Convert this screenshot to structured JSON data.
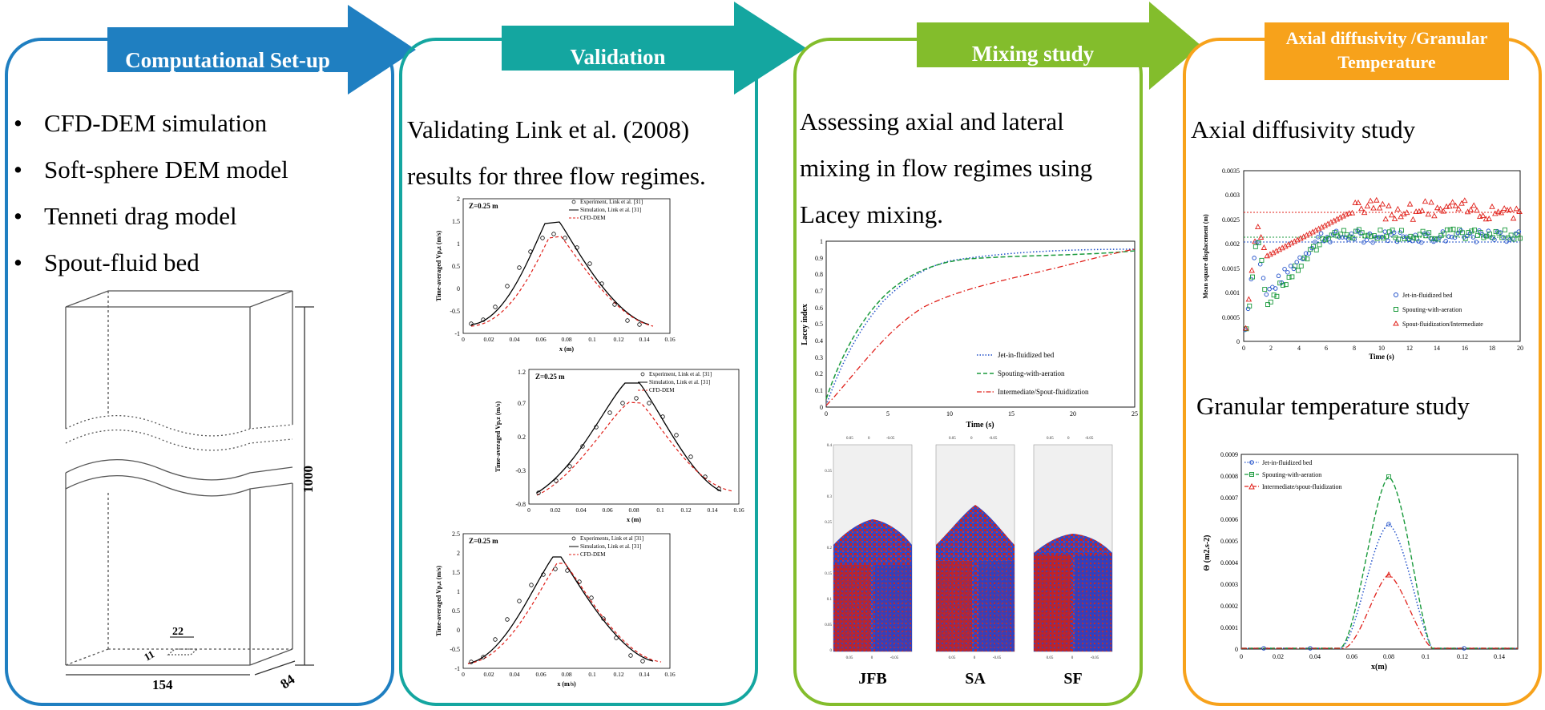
{
  "colors": {
    "p1": "#1f7fc1",
    "p2": "#14a6a0",
    "p3": "#83bd2c",
    "p4": "#f7a21b"
  },
  "panel1": {
    "banner": "Computational Set-up",
    "bullets": [
      "CFD-DEM simulation",
      "Soft-sphere DEM model",
      "Tenneti drag model",
      "Spout-fluid bed"
    ],
    "dims": {
      "height": "1000",
      "width": "154",
      "depth": "84",
      "inlet_w": "22",
      "inlet_d": "11"
    }
  },
  "panel2": {
    "banner": "Validation",
    "text_l1": "Validating Link et al. (2008)",
    "text_l2": "results for three flow regimes.",
    "plots": [
      {
        "z": "Z=0.25 m",
        "ylabel": "Time-averaged Vp,z (m/s)",
        "xlabel": "x (m)",
        "legend": [
          "Experiment, Link et al. [31]",
          "Simulation, Link et al. [31]",
          "CFD-DEM"
        ],
        "yticks": [
          "-1",
          "-0.5",
          "0",
          "0.5",
          "1",
          "1.5",
          "2"
        ],
        "xticks": [
          "0",
          "0.02",
          "0.04",
          "0.06",
          "0.08",
          "0.1",
          "0.12",
          "0.14",
          "0.16"
        ]
      },
      {
        "z": "Z=0.25 m",
        "ylabel": "Time-averaged Vp,z (m/s)",
        "xlabel": "x (m)",
        "legend": [
          "Experiment, Link et al. [31]",
          "Simulation, Link et al. [31]",
          "CFD-DEM"
        ],
        "yticks": [
          "-0.8",
          "-0.3",
          "0.2",
          "0.7",
          "1.2"
        ],
        "xticks": [
          "0",
          "0.02",
          "0.04",
          "0.06",
          "0.08",
          "0.1",
          "0.12",
          "0.14",
          "0.16"
        ]
      },
      {
        "z": "Z=0.25 m",
        "ylabel": "Time-averaged Vp,z (m/s)",
        "xlabel": "x (m/s)",
        "legend": [
          "Experiments, Link et al [31]",
          "Simulation, Link et al. [31]",
          "CFD-DEM"
        ],
        "yticks": [
          "-1",
          "-0.5",
          "0",
          "0.5",
          "1",
          "1.5",
          "2",
          "2.5"
        ],
        "xticks": [
          "0",
          "0.02",
          "0.04",
          "0.06",
          "0.08",
          "0.1",
          "0.12",
          "0.14",
          "0.16"
        ]
      }
    ]
  },
  "panel3": {
    "banner": "Mixing study",
    "text_l1": "Assessing axial and lateral",
    "text_l2": "mixing in flow regimes using",
    "text_l3": "Lacey mixing.",
    "lacey": {
      "ylabel": "Lacey index",
      "xlabel": "Time (s)",
      "yticks": [
        "0",
        "0.1",
        "0.2",
        "0.3",
        "0.4",
        "0.5",
        "0.6",
        "0.7",
        "0.8",
        "0.9",
        "1"
      ],
      "xticks": [
        "0",
        "5",
        "10",
        "15",
        "20",
        "25"
      ],
      "legend": [
        "Jet-in-fluidized bed",
        "Spouting-with-aeration",
        "Intermediate/Spout-fluidization"
      ]
    },
    "snap_labels": [
      "JFB",
      "SA",
      "SF"
    ],
    "snap_top": [
      "0.05",
      "0",
      "-0.05"
    ],
    "snap_y": [
      "0",
      "0.05",
      "0.1",
      "0.15",
      "0.2",
      "0.25",
      "0.3",
      "0.35",
      "0.4"
    ]
  },
  "panel4": {
    "banner_l1": "Axial diffusivity /Granular",
    "banner_l2": "Temperature",
    "title1": "Axial diffusivity study",
    "title2": "Granular temperature study",
    "msd": {
      "ylabel": "Mean square displacement (m)",
      "xlabel": "Time (s)",
      "yticks": [
        "0",
        "0.0005",
        "0.001",
        "0.0015",
        "0.002",
        "0.0025",
        "0.003",
        "0.0035"
      ],
      "xticks": [
        "0",
        "2",
        "4",
        "6",
        "8",
        "10",
        "12",
        "14",
        "16",
        "18",
        "20"
      ],
      "legend": [
        "Jet-in-fluidized bed",
        "Spouting-with-aeration",
        "Spout-fluidization/Intermediate"
      ]
    },
    "gt": {
      "ylabel": "Θ (m2.s-2)",
      "xlabel": "x(m)",
      "yticks": [
        "0",
        "0.0001",
        "0.0002",
        "0.0003",
        "0.0004",
        "0.0005",
        "0.0006",
        "0.0007",
        "0.0008",
        "0.0009"
      ],
      "xticks": [
        "0",
        "0.02",
        "0.04",
        "0.06",
        "0.08",
        "0.1",
        "0.12",
        "0.14"
      ],
      "legend": [
        "Jet-in-fluidized bed",
        "Spouting-with-aeration",
        "Intermediate/spout-fluidization"
      ]
    }
  }
}
